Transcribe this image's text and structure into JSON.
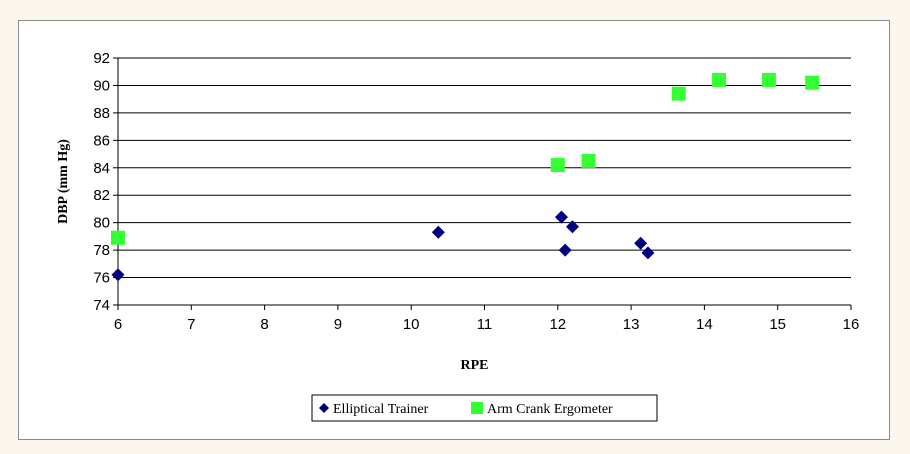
{
  "chart_data": {
    "type": "scatter",
    "xlabel": "RPE",
    "ylabel": "DBP (mm Hg)",
    "xlim": [
      6,
      16
    ],
    "ylim": [
      74,
      92
    ],
    "xticks": [
      6,
      7,
      8,
      9,
      10,
      11,
      12,
      13,
      14,
      15,
      16
    ],
    "yticks": [
      74,
      76,
      78,
      80,
      82,
      84,
      86,
      88,
      90,
      92
    ],
    "grid": "horizontal",
    "legend_position": "bottom",
    "series": [
      {
        "name": "Elliptical Trainer",
        "marker": "diamond",
        "color": "#000080",
        "points": [
          {
            "x": 6.0,
            "y": 76.2
          },
          {
            "x": 10.37,
            "y": 79.3
          },
          {
            "x": 12.05,
            "y": 80.4
          },
          {
            "x": 12.2,
            "y": 79.7
          },
          {
            "x": 12.1,
            "y": 78.0
          },
          {
            "x": 13.13,
            "y": 78.5
          },
          {
            "x": 13.23,
            "y": 77.8
          }
        ]
      },
      {
        "name": "Arm Crank Ergometer",
        "marker": "square",
        "color": "#33ff33",
        "points": [
          {
            "x": 6.0,
            "y": 78.9
          },
          {
            "x": 12.0,
            "y": 84.2
          },
          {
            "x": 12.42,
            "y": 84.5
          },
          {
            "x": 13.65,
            "y": 89.4
          },
          {
            "x": 14.2,
            "y": 90.4
          },
          {
            "x": 14.88,
            "y": 90.4
          },
          {
            "x": 15.47,
            "y": 90.2
          }
        ]
      }
    ]
  }
}
